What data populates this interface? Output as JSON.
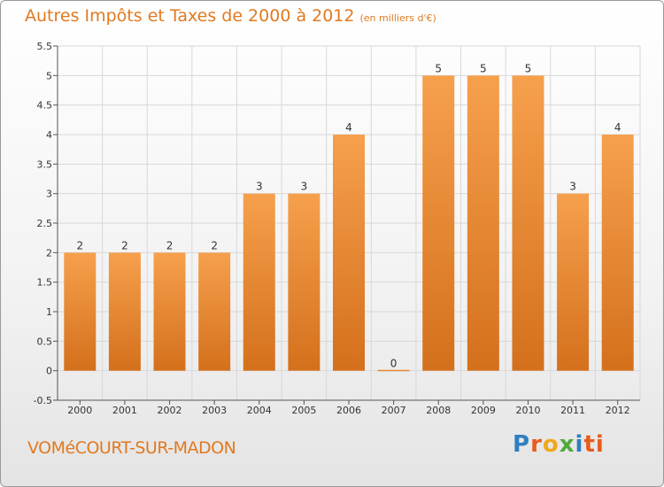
{
  "colors": {
    "accent": "#e07a21",
    "bar_top": "#f6a04d",
    "bar_bottom": "#d4701c",
    "grid": "#d8d8d8"
  },
  "logo": {
    "text": "Proxiti",
    "letters": [
      "P",
      "r",
      "o",
      "x",
      "i",
      "ti"
    ]
  },
  "chart_data": {
    "type": "bar",
    "title": "Autres Impôts et Taxes de 2000 à 2012",
    "subtitle": "(en milliers d'€)",
    "commune": "VOMéCOURT-SUR-MADON",
    "xlabel": "",
    "ylabel": "",
    "categories": [
      "2000",
      "2001",
      "2002",
      "2003",
      "2004",
      "2005",
      "2006",
      "2007",
      "2008",
      "2009",
      "2010",
      "2011",
      "2012"
    ],
    "values": [
      2,
      2,
      2,
      2,
      3,
      3,
      4,
      0,
      5,
      5,
      5,
      3,
      4
    ],
    "value_labels": [
      "2",
      "2",
      "2",
      "2",
      "3",
      "3",
      "4",
      "0",
      "5",
      "5",
      "5",
      "3",
      "4"
    ],
    "ylim": [
      -0.5,
      5.5
    ],
    "yticks": [
      -0.5,
      0,
      0.5,
      1,
      1.5,
      2,
      2.5,
      3,
      3.5,
      4,
      4.5,
      5,
      5.5
    ],
    "ytick_labels": [
      "-0.5",
      "0",
      "0.5",
      "1",
      "1.5",
      "2",
      "2.5",
      "3",
      "3.5",
      "4",
      "4.5",
      "5",
      "5.5"
    ],
    "grid": true,
    "legend": "none"
  }
}
